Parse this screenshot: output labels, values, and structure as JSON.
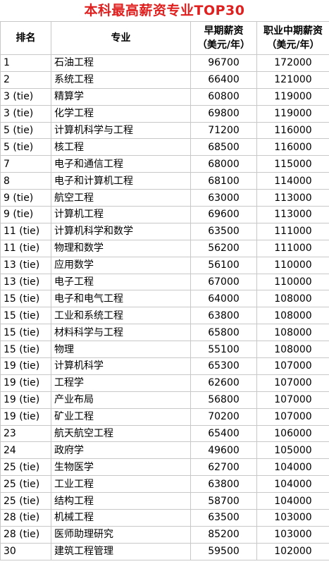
{
  "title": "本科最高薪资专业TOP30",
  "headers": {
    "rank": "排名",
    "major": "专业",
    "early": "早期薪资",
    "early_unit": "（美元/年）",
    "mid": "职业中期薪资",
    "mid_unit": "（美元/年）"
  },
  "rows": [
    {
      "rank": "1",
      "major": "石油工程",
      "early": "96700",
      "mid": "172000"
    },
    {
      "rank": "2",
      "major": "系统工程",
      "early": "66400",
      "mid": "121000"
    },
    {
      "rank": "3 (tie)",
      "major": "精算学",
      "early": "60800",
      "mid": "119000"
    },
    {
      "rank": "3 (tie)",
      "major": "化学工程",
      "early": "69800",
      "mid": "119000"
    },
    {
      "rank": "5 (tie)",
      "major": "计算机科学与工程",
      "early": "71200",
      "mid": "116000"
    },
    {
      "rank": "5 (tie)",
      "major": "核工程",
      "early": "68500",
      "mid": "116000"
    },
    {
      "rank": "7",
      "major": "电子和通信工程",
      "early": "68000",
      "mid": "115000"
    },
    {
      "rank": "8",
      "major": "电子和计算机工程",
      "early": "68100",
      "mid": "114000"
    },
    {
      "rank": "9 (tie)",
      "major": "航空工程",
      "early": "63000",
      "mid": "113000"
    },
    {
      "rank": "9 (tie)",
      "major": "计算机工程",
      "early": "69600",
      "mid": "113000"
    },
    {
      "rank": "11 (tie)",
      "major": "计算机科学和数学",
      "early": "63500",
      "mid": "111000"
    },
    {
      "rank": "11 (tie)",
      "major": "物理和数学",
      "early": "56200",
      "mid": "111000"
    },
    {
      "rank": "13 (tie)",
      "major": "应用数学",
      "early": "56100",
      "mid": "110000"
    },
    {
      "rank": "13 (tie)",
      "major": "电子工程",
      "early": "67000",
      "mid": "110000"
    },
    {
      "rank": "15 (tie)",
      "major": "电子和电气工程",
      "early": "64000",
      "mid": "108000"
    },
    {
      "rank": "15 (tie)",
      "major": "工业和系统工程",
      "early": "63800",
      "mid": "108000"
    },
    {
      "rank": "15 (tie)",
      "major": "材料科学与工程",
      "early": "65800",
      "mid": "108000"
    },
    {
      "rank": "15 (tie)",
      "major": "物理",
      "early": "55100",
      "mid": "108000"
    },
    {
      "rank": "19 (tie)",
      "major": "计算机科学",
      "early": "65300",
      "mid": "107000"
    },
    {
      "rank": "19 (tie)",
      "major": "工程学",
      "early": "62600",
      "mid": "107000"
    },
    {
      "rank": "19 (tie)",
      "major": "产业布局",
      "early": "56800",
      "mid": "107000"
    },
    {
      "rank": "19 (tie)",
      "major": "矿业工程",
      "early": "70200",
      "mid": "107000"
    },
    {
      "rank": "23",
      "major": "航天航空工程",
      "early": "65400",
      "mid": "106000"
    },
    {
      "rank": "24",
      "major": "政府学",
      "early": "49600",
      "mid": "105000"
    },
    {
      "rank": "25 (tie)",
      "major": "生物医学",
      "early": "62700",
      "mid": "104000"
    },
    {
      "rank": "25 (tie)",
      "major": "工业工程",
      "early": "63800",
      "mid": "104000"
    },
    {
      "rank": "25 (tie)",
      "major": "结构工程",
      "early": "58700",
      "mid": "104000"
    },
    {
      "rank": "28 (tie)",
      "major": "机械工程",
      "early": "63500",
      "mid": "103000"
    },
    {
      "rank": "28 (tie)",
      "major": "医师助理研究",
      "early": "85200",
      "mid": "103000"
    },
    {
      "rank": "30",
      "major": "建筑工程管理",
      "early": "59500",
      "mid": "102000"
    }
  ]
}
